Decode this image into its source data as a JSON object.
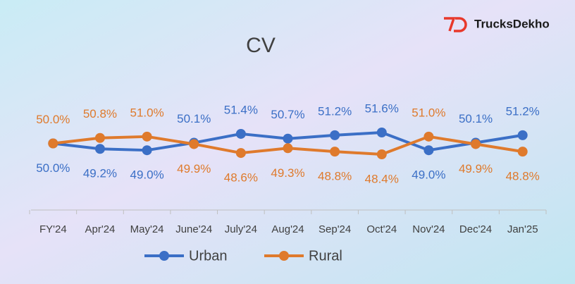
{
  "brand": "TrucksDekho",
  "chart_data": {
    "type": "line",
    "title": "CV",
    "categories": [
      "FY'24",
      "Apr'24",
      "May'24",
      "June'24",
      "July'24",
      "Aug'24",
      "Sep'24",
      "Oct'24",
      "Nov'24",
      "Dec'24",
      "Jan'25"
    ],
    "series": [
      {
        "name": "Urban",
        "color": "#3b6fc6",
        "values": [
          50.0,
          49.2,
          49.0,
          50.1,
          51.4,
          50.7,
          51.2,
          51.6,
          49.0,
          50.1,
          51.2
        ],
        "value_labels": [
          "50.0%",
          "49.2%",
          "49.0%",
          "50.1%",
          "51.4%",
          "50.7%",
          "51.2%",
          "51.6%",
          "49.0%",
          "50.1%",
          "51.2%"
        ]
      },
      {
        "name": "Rural",
        "color": "#df7a2c",
        "values": [
          50.0,
          50.8,
          51.0,
          49.9,
          48.6,
          49.3,
          48.8,
          48.4,
          51.0,
          49.9,
          48.8
        ],
        "value_labels": [
          "50.0%",
          "50.8%",
          "51.0%",
          "49.9%",
          "48.6%",
          "49.3%",
          "48.8%",
          "48.4%",
          "51.0%",
          "49.9%",
          "48.8%"
        ]
      }
    ]
  }
}
